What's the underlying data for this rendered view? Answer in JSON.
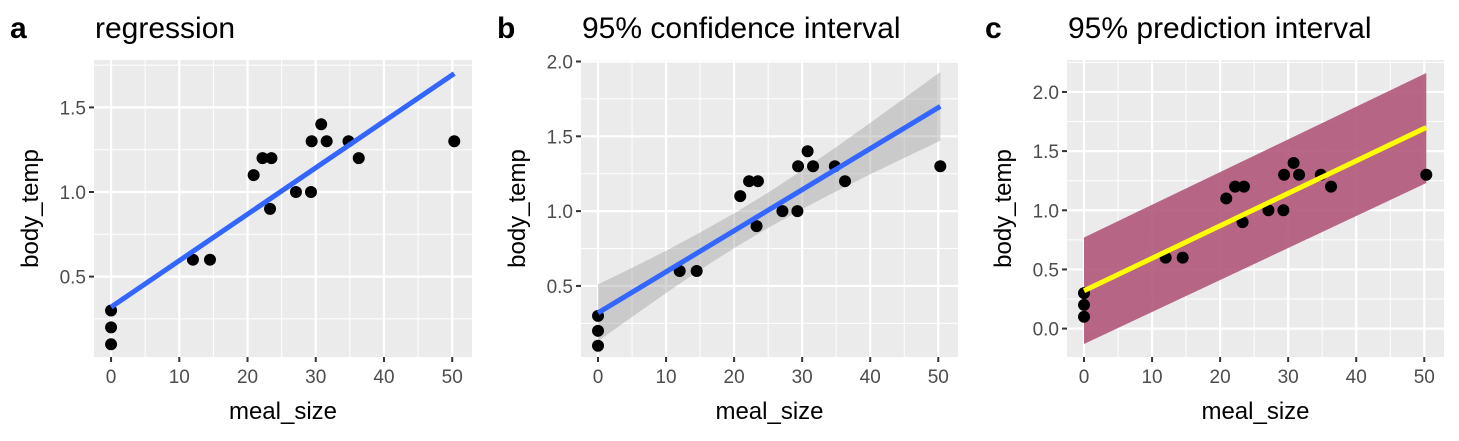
{
  "chart_data": [
    {
      "type": "scatter",
      "panel_tag": "a",
      "title": "regression",
      "xlabel": "meal_size",
      "ylabel": "body_temp",
      "xlim": [
        -2.5,
        52.9
      ],
      "ylim": [
        0.025,
        1.78
      ],
      "xticks": [
        0,
        10,
        20,
        30,
        40,
        50
      ],
      "yticks": [
        0.5,
        1.0,
        1.5
      ],
      "ytick_labels": [
        "0.5",
        "1.0",
        "1.5"
      ],
      "grid": true,
      "line_color": "#3366FF",
      "fit_line": {
        "x": [
          0,
          50.3
        ],
        "y": [
          0.32,
          1.7
        ]
      }
    },
    {
      "type": "scatter",
      "panel_tag": "b",
      "title": "95% confidence interval",
      "xlabel": "meal_size",
      "ylabel": "body_temp",
      "xlim": [
        -2.5,
        52.9
      ],
      "ylim": [
        0.025,
        2.01
      ],
      "xticks": [
        0,
        10,
        20,
        30,
        40,
        50
      ],
      "yticks": [
        0.5,
        1.0,
        1.5,
        2.0
      ],
      "ytick_labels": [
        "0.5",
        "1.0",
        "1.5",
        "2.0"
      ],
      "grid": true,
      "line_color": "#3366FF",
      "band_color": "#999999",
      "fit_line": {
        "x": [
          0,
          50.3
        ],
        "y": [
          0.32,
          1.7
        ]
      },
      "band": {
        "x": [
          0,
          5,
          10,
          15,
          20,
          25,
          30,
          35,
          40,
          45,
          50.3
        ],
        "lower": [
          0.13,
          0.293,
          0.453,
          0.607,
          0.753,
          0.888,
          1.014,
          1.132,
          1.246,
          1.356,
          1.47
        ],
        "upper": [
          0.51,
          0.621,
          0.735,
          0.857,
          0.985,
          1.124,
          1.272,
          1.428,
          1.59,
          1.754,
          1.93
        ]
      }
    },
    {
      "type": "scatter",
      "panel_tag": "c",
      "title": "95% prediction interval",
      "xlabel": "meal_size",
      "ylabel": "body_temp",
      "xlim": [
        -2.5,
        52.9
      ],
      "ylim": [
        -0.24,
        2.27
      ],
      "xticks": [
        0,
        10,
        20,
        30,
        40,
        50
      ],
      "yticks": [
        0.0,
        0.5,
        1.0,
        1.5,
        2.0
      ],
      "ytick_labels": [
        "0.0",
        "0.5",
        "1.0",
        "1.5",
        "2.0"
      ],
      "grid": true,
      "line_color": "#FFFF00",
      "band_color": "#B0567A",
      "fit_line": {
        "x": [
          0,
          50.3
        ],
        "y": [
          0.32,
          1.7
        ]
      },
      "band": {
        "x": [
          0,
          50.3
        ],
        "lower": [
          -0.13,
          1.23
        ],
        "upper": [
          0.77,
          2.16
        ]
      }
    }
  ],
  "points": {
    "x": [
      0,
      0,
      0,
      12,
      14.5,
      20.9,
      22.2,
      23.5,
      23.3,
      27.1,
      29.3,
      29.4,
      30.8,
      31.6,
      34.8,
      36.3,
      50.3
    ],
    "y": [
      0.1,
      0.2,
      0.3,
      0.6,
      0.6,
      1.1,
      1.2,
      1.2,
      0.9,
      1.0,
      1.0,
      1.3,
      1.4,
      1.3,
      1.3,
      1.2,
      1.3
    ]
  }
}
